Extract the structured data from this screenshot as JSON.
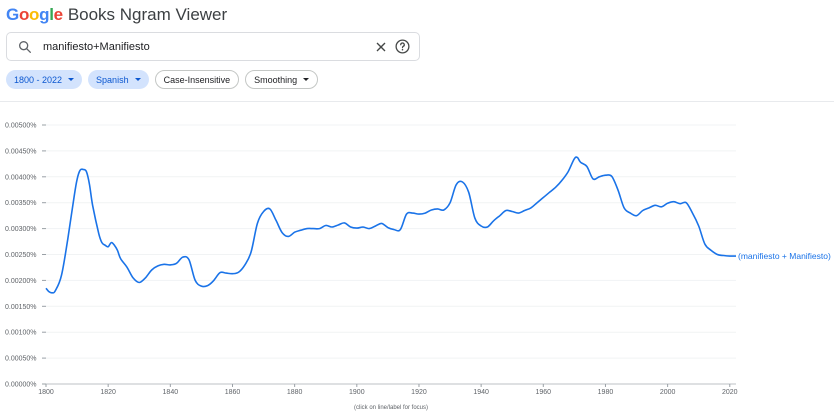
{
  "header": {
    "logo": [
      "G",
      "o",
      "o",
      "g",
      "l",
      "e"
    ],
    "logo_colors": [
      "#4285F4",
      "#EA4335",
      "#FBBC05",
      "#4285F4",
      "#34A853",
      "#EA4335"
    ],
    "title": "Books Ngram Viewer"
  },
  "search": {
    "value": "manifiesto+Manifiesto",
    "icon": "search-icon"
  },
  "filters": {
    "year_range": "1800 - 2022",
    "corpus": "Spanish",
    "case": "Case-Insensitive",
    "smoothing": "Smoothing"
  },
  "chart_data": {
    "type": "line",
    "xlim": [
      1800,
      2022
    ],
    "ylim": [
      0,
      0.005
    ],
    "yticks": [
      "0.00000%",
      "0.00050%",
      "0.00100%",
      "0.00150%",
      "0.00200%",
      "0.00250%",
      "0.00300%",
      "0.00350%",
      "0.00400%",
      "0.00450%",
      "0.00500%"
    ],
    "xticks": [
      "1800",
      "1820",
      "1840",
      "1860",
      "1880",
      "1900",
      "1920",
      "1940",
      "1960",
      "1980",
      "2000",
      "2020"
    ],
    "color": "#1a73e8",
    "footnote": "(click on line/label for focus)",
    "series": [
      {
        "name": "(manifiesto + Manifiesto)",
        "x": [
          1800,
          1801,
          1802,
          1803,
          1805,
          1807,
          1809,
          1810,
          1811,
          1812,
          1813,
          1814,
          1815,
          1817,
          1818,
          1819,
          1820,
          1821,
          1822,
          1823,
          1824,
          1826,
          1828,
          1830,
          1832,
          1834,
          1836,
          1838,
          1840,
          1842,
          1844,
          1846,
          1848,
          1850,
          1852,
          1854,
          1856,
          1858,
          1860,
          1862,
          1864,
          1866,
          1868,
          1870,
          1872,
          1874,
          1876,
          1878,
          1880,
          1882,
          1884,
          1886,
          1888,
          1890,
          1892,
          1894,
          1896,
          1898,
          1900,
          1902,
          1904,
          1906,
          1908,
          1910,
          1912,
          1914,
          1916,
          1918,
          1920,
          1922,
          1924,
          1926,
          1928,
          1930,
          1932,
          1934,
          1936,
          1938,
          1940,
          1942,
          1944,
          1946,
          1948,
          1950,
          1952,
          1954,
          1956,
          1958,
          1960,
          1962,
          1964,
          1966,
          1968,
          1970,
          1971,
          1972,
          1974,
          1976,
          1978,
          1980,
          1982,
          1984,
          1986,
          1988,
          1990,
          1992,
          1994,
          1996,
          1998,
          2000,
          2002,
          2004,
          2006,
          2008,
          2010,
          2012,
          2014,
          2016,
          2018,
          2020,
          2022
        ],
        "y": [
          0.00185,
          0.00178,
          0.00176,
          0.0018,
          0.0021,
          0.0028,
          0.0036,
          0.00395,
          0.00413,
          0.00414,
          0.0041,
          0.00385,
          0.00345,
          0.0029,
          0.00273,
          0.00268,
          0.00265,
          0.00273,
          0.00268,
          0.00258,
          0.00242,
          0.00226,
          0.00205,
          0.00196,
          0.00205,
          0.0022,
          0.00228,
          0.00231,
          0.0023,
          0.00233,
          0.00245,
          0.0024,
          0.002,
          0.00189,
          0.0019,
          0.002,
          0.00215,
          0.00214,
          0.00213,
          0.00216,
          0.0023,
          0.00255,
          0.0031,
          0.00333,
          0.00338,
          0.00316,
          0.00292,
          0.00285,
          0.00293,
          0.00297,
          0.003,
          0.003,
          0.003,
          0.00306,
          0.00303,
          0.00307,
          0.00311,
          0.00303,
          0.00301,
          0.00303,
          0.003,
          0.00305,
          0.0031,
          0.00302,
          0.00298,
          0.00298,
          0.00328,
          0.0033,
          0.00328,
          0.0033,
          0.00336,
          0.00338,
          0.00336,
          0.0035,
          0.00385,
          0.0039,
          0.0037,
          0.0032,
          0.00305,
          0.00303,
          0.00315,
          0.00325,
          0.00335,
          0.00333,
          0.0033,
          0.00335,
          0.0034,
          0.0035,
          0.0036,
          0.0037,
          0.0038,
          0.00393,
          0.0041,
          0.00435,
          0.00437,
          0.00428,
          0.0042,
          0.00396,
          0.004,
          0.00403,
          0.00401,
          0.00375,
          0.0034,
          0.0033,
          0.00325,
          0.00335,
          0.0034,
          0.00345,
          0.00342,
          0.00349,
          0.00352,
          0.00348,
          0.0035,
          0.0033,
          0.00305,
          0.0027,
          0.00258,
          0.0025,
          0.00248,
          0.00247,
          0.00247
        ]
      }
    ]
  }
}
